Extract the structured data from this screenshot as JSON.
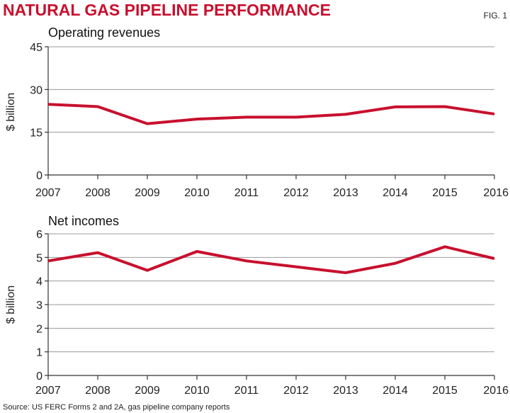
{
  "header": {
    "title": "NATURAL GAS PIPELINE PERFORMANCE",
    "fig_label": "FIG. 1"
  },
  "source": "Source: US FERC Forms 2 and 2A, gas pipeline company reports",
  "colors": {
    "title": "#c8102e",
    "line": "#c8102e",
    "grid": "#9a9a9a"
  },
  "chart_data": [
    {
      "type": "line",
      "title": "Operating revenues",
      "ylabel": "$ billion",
      "xlabel": "",
      "x": [
        "2007",
        "2008",
        "2009",
        "2010",
        "2011",
        "2012",
        "2013",
        "2014",
        "2015",
        "2016"
      ],
      "yticks": [
        "0",
        "15",
        "30",
        "45"
      ],
      "ylim": [
        0,
        45
      ],
      "series": [
        {
          "name": "Operating revenues",
          "values": [
            24.8,
            24.0,
            18.0,
            19.6,
            20.3,
            20.3,
            21.3,
            23.9,
            24.0,
            21.4
          ]
        }
      ]
    },
    {
      "type": "line",
      "title": "Net incomes",
      "ylabel": "$ billion",
      "xlabel": "",
      "x": [
        "2007",
        "2008",
        "2009",
        "2010",
        "2011",
        "2012",
        "2013",
        "2014",
        "2015",
        "2016"
      ],
      "yticks": [
        "0",
        "1",
        "2",
        "3",
        "4",
        "5",
        "6"
      ],
      "ylim": [
        0,
        6
      ],
      "series": [
        {
          "name": "Net incomes",
          "values": [
            4.85,
            5.2,
            4.45,
            5.25,
            4.85,
            4.6,
            4.35,
            4.75,
            5.45,
            4.95
          ]
        }
      ]
    }
  ]
}
